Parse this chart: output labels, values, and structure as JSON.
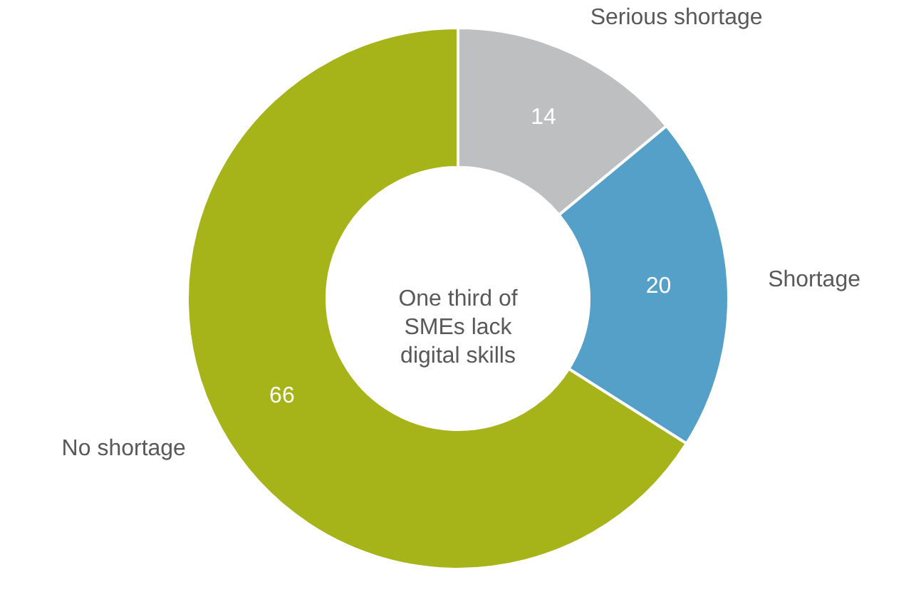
{
  "chart_data": {
    "type": "donut",
    "categories": [
      "Serious shortage",
      "Shortage",
      "No shortage"
    ],
    "values": [
      14,
      20,
      66
    ],
    "colors": [
      "#bdbfc1",
      "#55a0c8",
      "#a6b41a"
    ],
    "data_labels": true,
    "annotations": [
      "One third of SMEs lack digital skills"
    ]
  }
}
